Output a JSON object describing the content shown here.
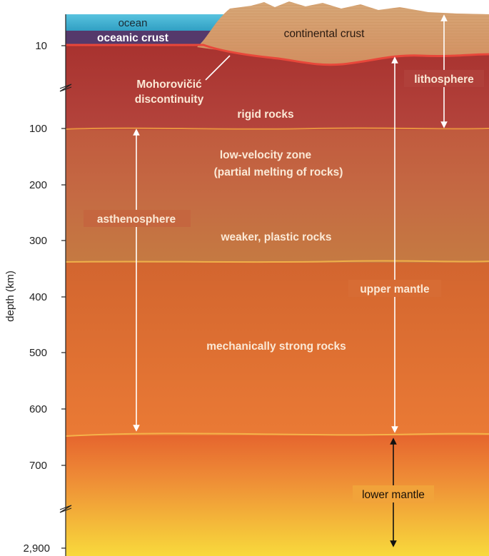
{
  "axis": {
    "title": "depth (km)",
    "ticks": [
      "10",
      "100",
      "200",
      "300",
      "400",
      "500",
      "600",
      "700",
      "2,900"
    ]
  },
  "layers": {
    "ocean": "ocean",
    "oceanic_crust": "oceanic crust",
    "continental_crust": "continental crust",
    "moho_line1": "Mohorovičić",
    "moho_line2": "discontinuity",
    "rigid": "rigid rocks",
    "lvz_line1": "low-velocity zone",
    "lvz_line2": "(partial melting of rocks)",
    "plastic": "weaker, plastic rocks",
    "strong": "mechanically strong rocks"
  },
  "zones": {
    "lithosphere": "lithosphere",
    "asthenosphere": "asthenosphere",
    "upper_mantle": "upper mantle",
    "lower_mantle": "lower mantle"
  },
  "colors": {
    "ocean": "#3ab0cf",
    "oceanic_crust": "#5a3f6e",
    "continental_crust": "#d9a87a",
    "lithosphere": "#b53a3a",
    "asthenosphere": "#c7683f",
    "upper_mantle": "#e0743a",
    "lower_mantle": "#f5c83a",
    "boundary": "#f4a84a"
  }
}
